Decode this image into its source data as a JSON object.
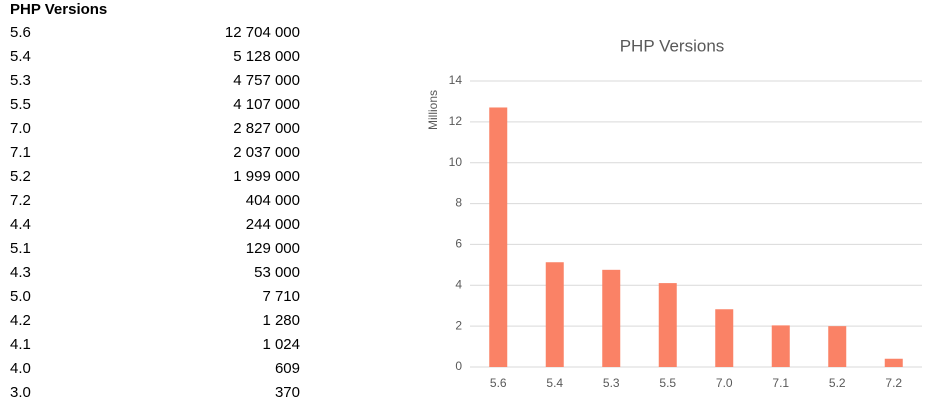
{
  "table": {
    "title": "PHP Versions",
    "rows": [
      [
        "5.6",
        "12 704 000"
      ],
      [
        "5.4",
        "5 128 000"
      ],
      [
        "5.3",
        "4 757 000"
      ],
      [
        "5.5",
        "4 107 000"
      ],
      [
        "7.0",
        "2 827 000"
      ],
      [
        "7.1",
        "2 037 000"
      ],
      [
        "5.2",
        "1 999 000"
      ],
      [
        "7.2",
        "404 000"
      ],
      [
        "4.4",
        "244 000"
      ],
      [
        "5.1",
        "129 000"
      ],
      [
        "4.3",
        "53 000"
      ],
      [
        "5.0",
        "7 710"
      ],
      [
        "4.2",
        "1 280"
      ],
      [
        "4.1",
        "1 024"
      ],
      [
        "4.0",
        "609"
      ],
      [
        "3.0",
        "370"
      ]
    ]
  },
  "chart_data": {
    "type": "bar",
    "title": "PHP Versions",
    "y_label": "Millions",
    "categories": [
      "5.6",
      "5.4",
      "5.3",
      "5.5",
      "7.0",
      "7.1",
      "5.2",
      "7.2"
    ],
    "values": [
      12.704,
      5.128,
      4.757,
      4.107,
      2.827,
      2.037,
      1.999,
      0.404
    ],
    "color": "#fa8266",
    "ylim": [
      0,
      14
    ],
    "yticks": [
      0,
      2,
      4,
      6,
      8,
      10,
      12,
      14
    ],
    "grid": true
  }
}
